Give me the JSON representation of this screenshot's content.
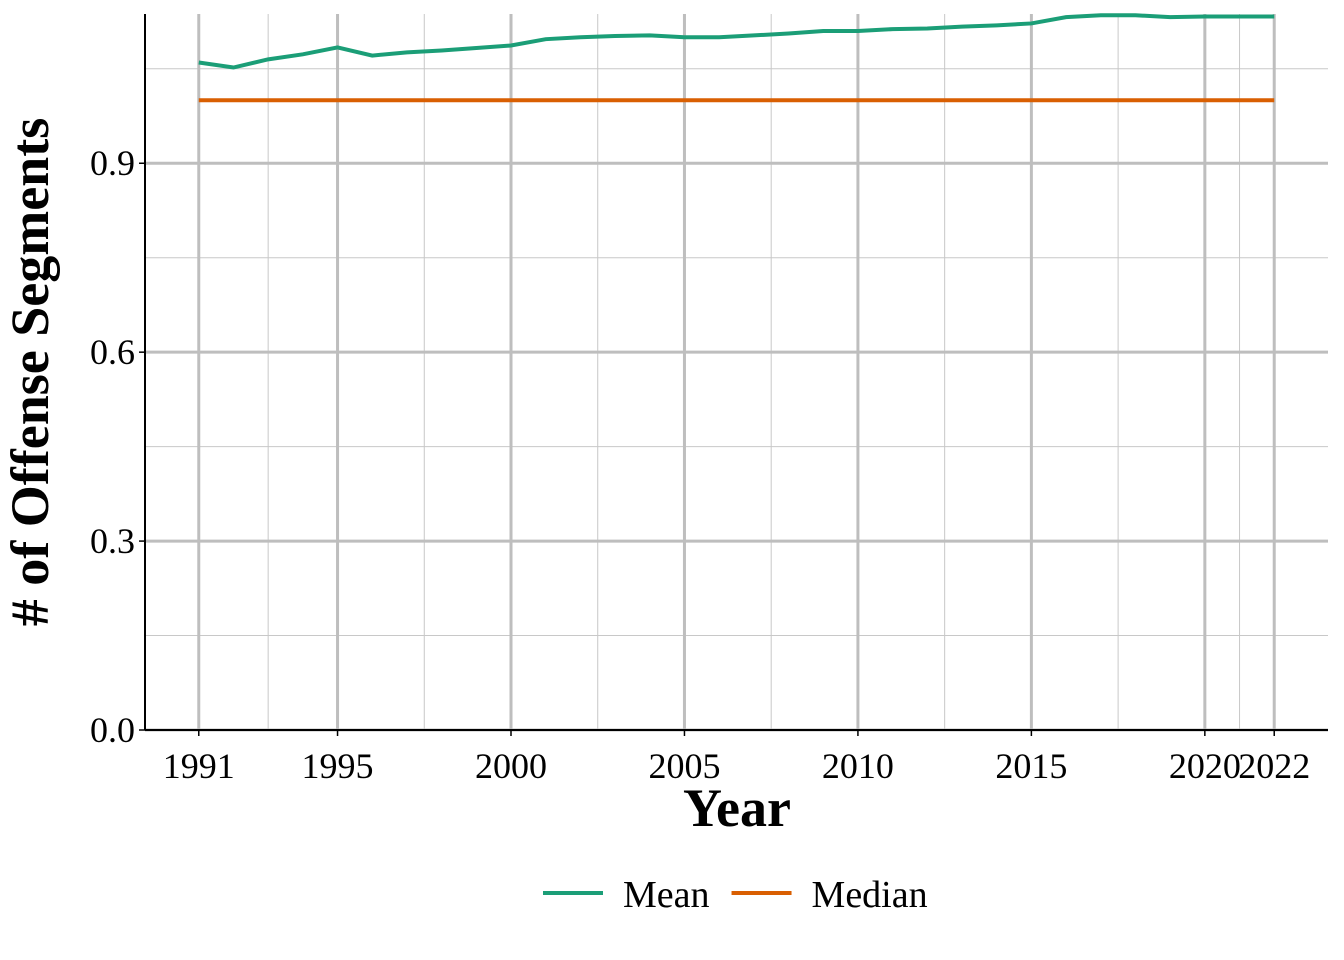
{
  "chart_data": {
    "type": "line",
    "x_label": "Year",
    "y_label": "# of Offense Segments",
    "x": [
      1991,
      1992,
      1993,
      1994,
      1995,
      1996,
      1997,
      1998,
      1999,
      2000,
      2001,
      2002,
      2003,
      2004,
      2005,
      2006,
      2007,
      2008,
      2009,
      2010,
      2011,
      2012,
      2013,
      2014,
      2015,
      2016,
      2017,
      2018,
      2019,
      2020,
      2021,
      2022
    ],
    "series": [
      {
        "name": "Mean",
        "color": "#1b9e77",
        "values": [
          1.06,
          1.052,
          1.065,
          1.073,
          1.084,
          1.071,
          1.076,
          1.079,
          1.083,
          1.087,
          1.097,
          1.1,
          1.102,
          1.103,
          1.1,
          1.1,
          1.103,
          1.106,
          1.11,
          1.11,
          1.113,
          1.114,
          1.117,
          1.119,
          1.122,
          1.132,
          1.135,
          1.135,
          1.132,
          1.133,
          1.133,
          1.133
        ]
      },
      {
        "name": "Median",
        "color": "#d95f02",
        "values": [
          1,
          1,
          1,
          1,
          1,
          1,
          1,
          1,
          1,
          1,
          1,
          1,
          1,
          1,
          1,
          1,
          1,
          1,
          1,
          1,
          1,
          1,
          1,
          1,
          1,
          1,
          1,
          1,
          1,
          1,
          1,
          1
        ]
      }
    ],
    "xlim": [
      1989.45,
      2023.55
    ],
    "ylim": [
      0,
      1.137
    ],
    "xticks": [
      1991,
      1995,
      2000,
      2005,
      2010,
      2015,
      2020,
      2022
    ],
    "yticks": [
      {
        "value": 0,
        "label": "0.0"
      },
      0.3,
      0.6,
      0.9
    ],
    "x_minor_ticks": [
      1993,
      1997.5,
      2002.5,
      2007.5,
      2012.5,
      2017.5,
      2021
    ],
    "y_minor_ticks": [
      0.15,
      0.45,
      0.75,
      1.05
    ],
    "grid": true,
    "legend_position": "bottom"
  }
}
